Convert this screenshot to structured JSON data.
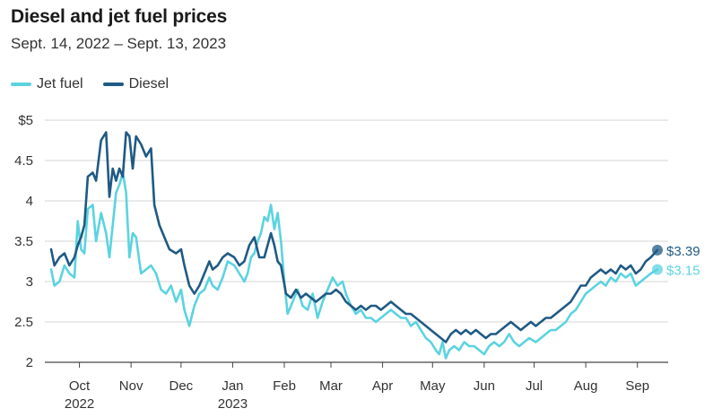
{
  "chart_data": {
    "type": "line",
    "title": "Diesel and jet fuel prices",
    "subtitle": "Sept. 14, 2022 – Sept. 13, 2023",
    "xlabel": "",
    "ylabel": "",
    "x_range": [
      "2022-09-14",
      "2023-09-13"
    ],
    "ylim": [
      2,
      5
    ],
    "y_ticks": [
      {
        "value": 5,
        "label": "$5"
      },
      {
        "value": 4.5,
        "label": "4.5"
      },
      {
        "value": 4,
        "label": "4"
      },
      {
        "value": 3.5,
        "label": "3.5"
      },
      {
        "value": 3,
        "label": "3"
      },
      {
        "value": 2.5,
        "label": "2.5"
      },
      {
        "value": 2,
        "label": "2"
      }
    ],
    "x_ticks": [
      {
        "date": "2022-10-01",
        "label": "Oct",
        "sublabel": "2022"
      },
      {
        "date": "2022-11-01",
        "label": "Nov",
        "sublabel": ""
      },
      {
        "date": "2022-12-01",
        "label": "Dec",
        "sublabel": ""
      },
      {
        "date": "2023-01-01",
        "label": "Jan",
        "sublabel": "2023"
      },
      {
        "date": "2023-02-01",
        "label": "Feb",
        "sublabel": ""
      },
      {
        "date": "2023-03-01",
        "label": "Mar",
        "sublabel": ""
      },
      {
        "date": "2023-04-01",
        "label": "Apr",
        "sublabel": ""
      },
      {
        "date": "2023-05-01",
        "label": "May",
        "sublabel": ""
      },
      {
        "date": "2023-06-01",
        "label": "Jun",
        "sublabel": ""
      },
      {
        "date": "2023-07-01",
        "label": "Jul",
        "sublabel": ""
      },
      {
        "date": "2023-08-01",
        "label": "Aug",
        "sublabel": ""
      },
      {
        "date": "2023-09-01",
        "label": "Sep",
        "sublabel": ""
      }
    ],
    "grid": true,
    "legend_position": "top-left",
    "series": [
      {
        "name": "Jet fuel",
        "color": "#5bd3e0",
        "end_label": "$3.15",
        "points": [
          [
            "2022-09-14",
            3.15
          ],
          [
            "2022-09-16",
            2.95
          ],
          [
            "2022-09-19",
            3.0
          ],
          [
            "2022-09-22",
            3.2
          ],
          [
            "2022-09-25",
            3.1
          ],
          [
            "2022-09-28",
            3.05
          ],
          [
            "2022-09-30",
            3.75
          ],
          [
            "2022-10-02",
            3.4
          ],
          [
            "2022-10-04",
            3.35
          ],
          [
            "2022-10-06",
            3.9
          ],
          [
            "2022-10-09",
            3.95
          ],
          [
            "2022-10-11",
            3.5
          ],
          [
            "2022-10-14",
            3.85
          ],
          [
            "2022-10-17",
            3.6
          ],
          [
            "2022-10-19",
            3.3
          ],
          [
            "2022-10-21",
            3.7
          ],
          [
            "2022-10-23",
            4.1
          ],
          [
            "2022-10-25",
            4.2
          ],
          [
            "2022-10-27",
            4.35
          ],
          [
            "2022-10-29",
            4.1
          ],
          [
            "2022-10-31",
            3.3
          ],
          [
            "2022-11-02",
            3.6
          ],
          [
            "2022-11-04",
            3.55
          ],
          [
            "2022-11-07",
            3.1
          ],
          [
            "2022-11-10",
            3.15
          ],
          [
            "2022-11-13",
            3.2
          ],
          [
            "2022-11-16",
            3.1
          ],
          [
            "2022-11-19",
            2.9
          ],
          [
            "2022-11-22",
            2.85
          ],
          [
            "2022-11-25",
            2.95
          ],
          [
            "2022-11-28",
            2.75
          ],
          [
            "2022-12-01",
            2.9
          ],
          [
            "2022-12-03",
            2.65
          ],
          [
            "2022-12-06",
            2.45
          ],
          [
            "2022-12-09",
            2.7
          ],
          [
            "2022-12-12",
            2.85
          ],
          [
            "2022-12-15",
            2.9
          ],
          [
            "2022-12-18",
            3.05
          ],
          [
            "2022-12-20",
            2.95
          ],
          [
            "2022-12-23",
            2.9
          ],
          [
            "2022-12-26",
            3.05
          ],
          [
            "2022-12-29",
            3.25
          ],
          [
            "2023-01-02",
            3.2
          ],
          [
            "2023-01-05",
            3.1
          ],
          [
            "2023-01-08",
            3.0
          ],
          [
            "2023-01-10",
            3.1
          ],
          [
            "2023-01-12",
            3.3
          ],
          [
            "2023-01-14",
            3.35
          ],
          [
            "2023-01-16",
            3.5
          ],
          [
            "2023-01-18",
            3.6
          ],
          [
            "2023-01-20",
            3.8
          ],
          [
            "2023-01-22",
            3.75
          ],
          [
            "2023-01-24",
            3.95
          ],
          [
            "2023-01-26",
            3.65
          ],
          [
            "2023-01-28",
            3.85
          ],
          [
            "2023-01-30",
            3.5
          ],
          [
            "2023-02-01",
            3.0
          ],
          [
            "2023-02-03",
            2.6
          ],
          [
            "2023-02-06",
            2.75
          ],
          [
            "2023-02-09",
            2.9
          ],
          [
            "2023-02-12",
            2.7
          ],
          [
            "2023-02-15",
            2.65
          ],
          [
            "2023-02-18",
            2.85
          ],
          [
            "2023-02-21",
            2.55
          ],
          [
            "2023-02-24",
            2.75
          ],
          [
            "2023-02-27",
            2.9
          ],
          [
            "2023-03-02",
            3.05
          ],
          [
            "2023-03-05",
            2.95
          ],
          [
            "2023-03-08",
            3.0
          ],
          [
            "2023-03-10",
            2.85
          ],
          [
            "2023-03-13",
            2.7
          ],
          [
            "2023-03-16",
            2.6
          ],
          [
            "2023-03-19",
            2.65
          ],
          [
            "2023-03-22",
            2.55
          ],
          [
            "2023-03-25",
            2.55
          ],
          [
            "2023-03-28",
            2.5
          ],
          [
            "2023-03-31",
            2.55
          ],
          [
            "2023-04-03",
            2.6
          ],
          [
            "2023-04-06",
            2.65
          ],
          [
            "2023-04-09",
            2.6
          ],
          [
            "2023-04-12",
            2.55
          ],
          [
            "2023-04-15",
            2.55
          ],
          [
            "2023-04-18",
            2.45
          ],
          [
            "2023-04-21",
            2.5
          ],
          [
            "2023-04-24",
            2.4
          ],
          [
            "2023-04-27",
            2.3
          ],
          [
            "2023-04-30",
            2.25
          ],
          [
            "2023-05-03",
            2.15
          ],
          [
            "2023-05-05",
            2.1
          ],
          [
            "2023-05-07",
            2.25
          ],
          [
            "2023-05-09",
            2.05
          ],
          [
            "2023-05-11",
            2.15
          ],
          [
            "2023-05-14",
            2.2
          ],
          [
            "2023-05-17",
            2.15
          ],
          [
            "2023-05-20",
            2.25
          ],
          [
            "2023-05-23",
            2.2
          ],
          [
            "2023-05-26",
            2.2
          ],
          [
            "2023-05-29",
            2.15
          ],
          [
            "2023-06-01",
            2.1
          ],
          [
            "2023-06-04",
            2.2
          ],
          [
            "2023-06-07",
            2.25
          ],
          [
            "2023-06-10",
            2.2
          ],
          [
            "2023-06-13",
            2.25
          ],
          [
            "2023-06-16",
            2.35
          ],
          [
            "2023-06-19",
            2.25
          ],
          [
            "2023-06-22",
            2.2
          ],
          [
            "2023-06-25",
            2.25
          ],
          [
            "2023-06-28",
            2.3
          ],
          [
            "2023-07-02",
            2.25
          ],
          [
            "2023-07-05",
            2.3
          ],
          [
            "2023-07-08",
            2.35
          ],
          [
            "2023-07-11",
            2.4
          ],
          [
            "2023-07-14",
            2.4
          ],
          [
            "2023-07-17",
            2.45
          ],
          [
            "2023-07-20",
            2.5
          ],
          [
            "2023-07-23",
            2.6
          ],
          [
            "2023-07-26",
            2.65
          ],
          [
            "2023-07-29",
            2.75
          ],
          [
            "2023-08-01",
            2.85
          ],
          [
            "2023-08-04",
            2.9
          ],
          [
            "2023-08-07",
            2.95
          ],
          [
            "2023-08-10",
            3.0
          ],
          [
            "2023-08-13",
            2.95
          ],
          [
            "2023-08-16",
            3.05
          ],
          [
            "2023-08-19",
            3.0
          ],
          [
            "2023-08-22",
            3.1
          ],
          [
            "2023-08-25",
            3.05
          ],
          [
            "2023-08-28",
            3.1
          ],
          [
            "2023-08-31",
            2.95
          ],
          [
            "2023-09-03",
            3.0
          ],
          [
            "2023-09-06",
            3.05
          ],
          [
            "2023-09-09",
            3.1
          ],
          [
            "2023-09-13",
            3.15
          ]
        ]
      },
      {
        "name": "Diesel",
        "color": "#1f5a84",
        "end_label": "$3.39",
        "points": [
          [
            "2022-09-14",
            3.4
          ],
          [
            "2022-09-16",
            3.2
          ],
          [
            "2022-09-19",
            3.3
          ],
          [
            "2022-09-22",
            3.35
          ],
          [
            "2022-09-25",
            3.2
          ],
          [
            "2022-09-28",
            3.3
          ],
          [
            "2022-09-30",
            3.45
          ],
          [
            "2022-10-02",
            3.55
          ],
          [
            "2022-10-04",
            3.7
          ],
          [
            "2022-10-06",
            4.3
          ],
          [
            "2022-10-09",
            4.35
          ],
          [
            "2022-10-11",
            4.25
          ],
          [
            "2022-10-14",
            4.75
          ],
          [
            "2022-10-17",
            4.85
          ],
          [
            "2022-10-19",
            4.05
          ],
          [
            "2022-10-21",
            4.4
          ],
          [
            "2022-10-23",
            4.25
          ],
          [
            "2022-10-25",
            4.4
          ],
          [
            "2022-10-27",
            4.3
          ],
          [
            "2022-10-29",
            4.85
          ],
          [
            "2022-10-31",
            4.8
          ],
          [
            "2022-11-02",
            4.4
          ],
          [
            "2022-11-04",
            4.8
          ],
          [
            "2022-11-07",
            4.7
          ],
          [
            "2022-11-10",
            4.55
          ],
          [
            "2022-11-13",
            4.65
          ],
          [
            "2022-11-15",
            3.95
          ],
          [
            "2022-11-18",
            3.7
          ],
          [
            "2022-11-21",
            3.55
          ],
          [
            "2022-11-24",
            3.4
          ],
          [
            "2022-11-28",
            3.35
          ],
          [
            "2022-12-01",
            3.4
          ],
          [
            "2022-12-03",
            3.2
          ],
          [
            "2022-12-06",
            2.95
          ],
          [
            "2022-12-09",
            2.85
          ],
          [
            "2022-12-12",
            2.95
          ],
          [
            "2022-12-15",
            3.1
          ],
          [
            "2022-12-18",
            3.25
          ],
          [
            "2022-12-20",
            3.15
          ],
          [
            "2022-12-23",
            3.2
          ],
          [
            "2022-12-26",
            3.3
          ],
          [
            "2022-12-29",
            3.35
          ],
          [
            "2023-01-02",
            3.3
          ],
          [
            "2023-01-05",
            3.2
          ],
          [
            "2023-01-08",
            3.25
          ],
          [
            "2023-01-11",
            3.45
          ],
          [
            "2023-01-14",
            3.55
          ],
          [
            "2023-01-17",
            3.3
          ],
          [
            "2023-01-20",
            3.3
          ],
          [
            "2023-01-22",
            3.45
          ],
          [
            "2023-01-24",
            3.6
          ],
          [
            "2023-01-26",
            3.45
          ],
          [
            "2023-01-28",
            3.25
          ],
          [
            "2023-01-30",
            3.2
          ],
          [
            "2023-02-02",
            2.85
          ],
          [
            "2023-02-05",
            2.8
          ],
          [
            "2023-02-08",
            2.9
          ],
          [
            "2023-02-11",
            2.8
          ],
          [
            "2023-02-14",
            2.85
          ],
          [
            "2023-02-17",
            2.8
          ],
          [
            "2023-02-20",
            2.75
          ],
          [
            "2023-02-23",
            2.8
          ],
          [
            "2023-02-26",
            2.85
          ],
          [
            "2023-03-01",
            2.85
          ],
          [
            "2023-03-04",
            2.9
          ],
          [
            "2023-03-07",
            2.85
          ],
          [
            "2023-03-10",
            2.75
          ],
          [
            "2023-03-13",
            2.7
          ],
          [
            "2023-03-16",
            2.65
          ],
          [
            "2023-03-19",
            2.7
          ],
          [
            "2023-03-22",
            2.65
          ],
          [
            "2023-03-25",
            2.7
          ],
          [
            "2023-03-28",
            2.7
          ],
          [
            "2023-03-31",
            2.65
          ],
          [
            "2023-04-03",
            2.7
          ],
          [
            "2023-04-06",
            2.75
          ],
          [
            "2023-04-09",
            2.7
          ],
          [
            "2023-04-12",
            2.65
          ],
          [
            "2023-04-15",
            2.6
          ],
          [
            "2023-04-18",
            2.6
          ],
          [
            "2023-04-21",
            2.55
          ],
          [
            "2023-04-24",
            2.5
          ],
          [
            "2023-04-27",
            2.45
          ],
          [
            "2023-04-30",
            2.4
          ],
          [
            "2023-05-03",
            2.35
          ],
          [
            "2023-05-06",
            2.3
          ],
          [
            "2023-05-09",
            2.25
          ],
          [
            "2023-05-12",
            2.35
          ],
          [
            "2023-05-15",
            2.4
          ],
          [
            "2023-05-18",
            2.35
          ],
          [
            "2023-05-21",
            2.4
          ],
          [
            "2023-05-24",
            2.35
          ],
          [
            "2023-05-27",
            2.4
          ],
          [
            "2023-05-30",
            2.35
          ],
          [
            "2023-06-02",
            2.3
          ],
          [
            "2023-06-05",
            2.35
          ],
          [
            "2023-06-08",
            2.35
          ],
          [
            "2023-06-11",
            2.4
          ],
          [
            "2023-06-14",
            2.45
          ],
          [
            "2023-06-17",
            2.5
          ],
          [
            "2023-06-20",
            2.45
          ],
          [
            "2023-06-23",
            2.4
          ],
          [
            "2023-06-26",
            2.45
          ],
          [
            "2023-06-29",
            2.5
          ],
          [
            "2023-07-02",
            2.45
          ],
          [
            "2023-07-05",
            2.5
          ],
          [
            "2023-07-08",
            2.55
          ],
          [
            "2023-07-11",
            2.55
          ],
          [
            "2023-07-14",
            2.6
          ],
          [
            "2023-07-17",
            2.65
          ],
          [
            "2023-07-20",
            2.7
          ],
          [
            "2023-07-23",
            2.75
          ],
          [
            "2023-07-26",
            2.85
          ],
          [
            "2023-07-29",
            2.95
          ],
          [
            "2023-08-01",
            2.95
          ],
          [
            "2023-08-04",
            3.05
          ],
          [
            "2023-08-07",
            3.1
          ],
          [
            "2023-08-10",
            3.15
          ],
          [
            "2023-08-13",
            3.1
          ],
          [
            "2023-08-16",
            3.15
          ],
          [
            "2023-08-19",
            3.1
          ],
          [
            "2023-08-22",
            3.2
          ],
          [
            "2023-08-25",
            3.15
          ],
          [
            "2023-08-28",
            3.2
          ],
          [
            "2023-08-31",
            3.1
          ],
          [
            "2023-09-03",
            3.15
          ],
          [
            "2023-09-06",
            3.25
          ],
          [
            "2023-09-09",
            3.3
          ],
          [
            "2023-09-13",
            3.39
          ]
        ]
      }
    ]
  }
}
